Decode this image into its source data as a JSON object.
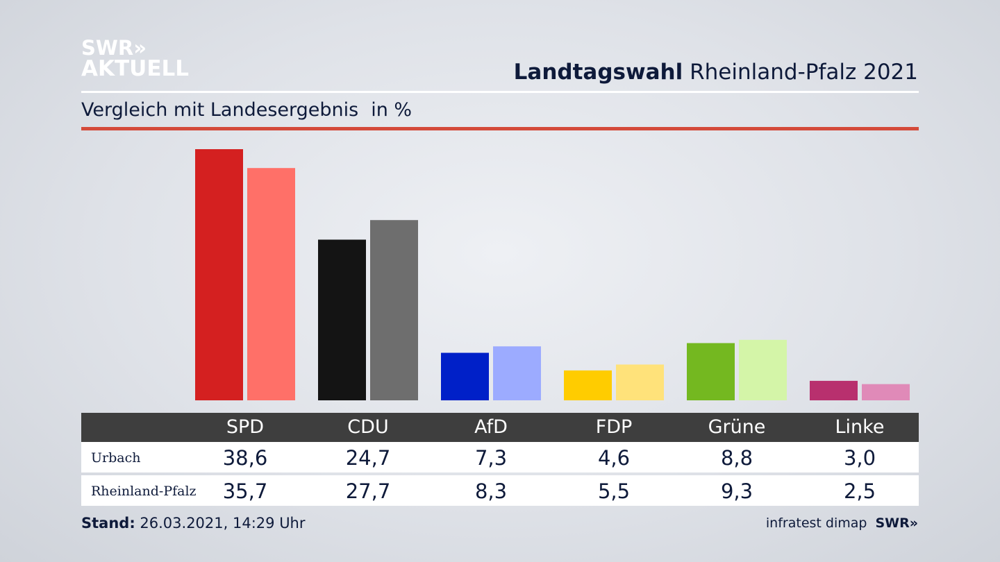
{
  "logo": {
    "line1": "SWR»",
    "line2": "AKTUELL"
  },
  "header": {
    "title_bold": "Landtagswahl",
    "title_rest": "Rheinland-Pfalz 2021"
  },
  "subtitle": {
    "text": "Vergleich mit Landesergebnis",
    "unit": "in %"
  },
  "table": {
    "rows": [
      {
        "label": "Urbach",
        "values": [
          "38,6",
          "24,7",
          "7,3",
          "4,6",
          "8,8",
          "3,0"
        ]
      },
      {
        "label": "Rheinland-Pfalz",
        "values": [
          "35,7",
          "27,7",
          "8,3",
          "5,5",
          "9,3",
          "2,5"
        ]
      }
    ]
  },
  "footer": {
    "stand_label": "Stand:",
    "stand_value": "26.03.2021, 14:29 Uhr",
    "source": "infratest dimap",
    "brand": "SWR»"
  },
  "chart_data": {
    "type": "bar",
    "categories": [
      "SPD",
      "CDU",
      "AfD",
      "FDP",
      "Grüne",
      "Linke"
    ],
    "series": [
      {
        "name": "Urbach",
        "values": [
          38.6,
          24.7,
          7.3,
          4.6,
          8.8,
          3.0
        ]
      },
      {
        "name": "Rheinland-Pfalz",
        "values": [
          35.7,
          27.7,
          8.3,
          5.5,
          9.3,
          2.5
        ]
      }
    ],
    "colors": {
      "Urbach": [
        "#d42020",
        "#141414",
        "#0020c8",
        "#ffcc00",
        "#74b820",
        "#b8306e"
      ],
      "Rheinland-Pfalz": [
        "#ff7068",
        "#6e6e6e",
        "#9cabff",
        "#ffe27a",
        "#d4f5a8",
        "#e08ab8"
      ]
    },
    "ylim": [
      0,
      38.6
    ],
    "grid": false,
    "legend": "none"
  }
}
